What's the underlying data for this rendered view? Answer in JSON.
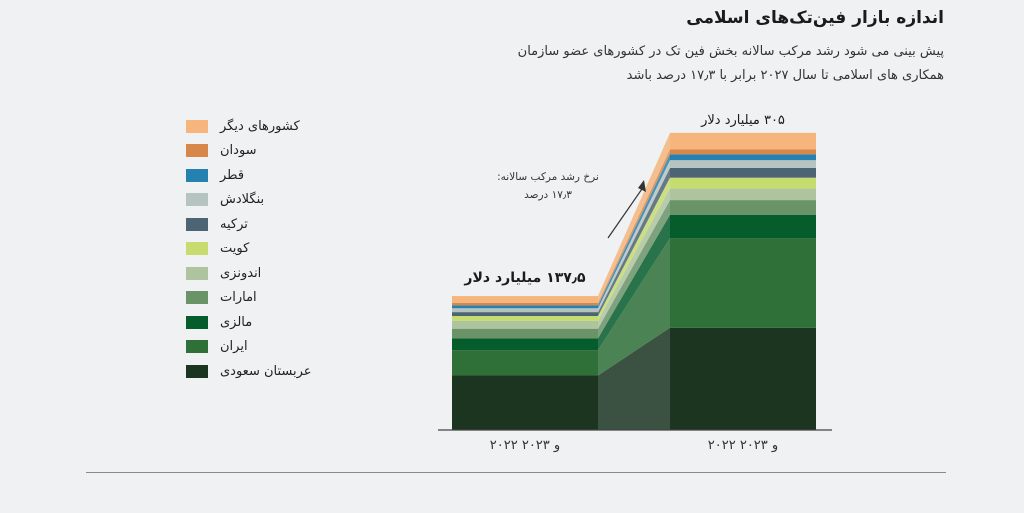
{
  "header": {
    "title": "اندازه بازار فین‌تک‌های اسلامی",
    "subtitle": "پیش بینی می شود رشد مرکب سالانه بخش فین تک در کشورهای عضو سازمان همکاری های اسلامی تا سال ۲۰۲۷ برابر با ۱۷٫۳ درصد باشد"
  },
  "chart_data": {
    "type": "bar",
    "stacked": true,
    "categories": [
      "۲۰۲۲ و ۲۰۲۳",
      "۲۰۲۲ و ۲۰۲۳"
    ],
    "totals_labels": [
      "۱۳۷٫۵ میلیارد دلار",
      "۳۰۵ میلیارد دلار"
    ],
    "annotation": "نرخ رشد مرکب سالانه: ۱۷٫۳ درصد",
    "ylim": [
      0,
      310
    ],
    "series": [
      {
        "name": "عربستان سعودی",
        "color": "#1b3521",
        "values": [
          56,
          105
        ]
      },
      {
        "name": "ایران",
        "color": "#2e7038",
        "values": [
          26,
          92
        ]
      },
      {
        "name": "مالزی",
        "color": "#055d2c",
        "values": [
          12,
          24
        ]
      },
      {
        "name": "امارات",
        "color": "#6a9468",
        "values": [
          10,
          15
        ]
      },
      {
        "name": "اندونزی",
        "color": "#aec49e",
        "values": [
          8,
          12
        ]
      },
      {
        "name": "کویت",
        "color": "#c6dc6e",
        "values": [
          5,
          11
        ]
      },
      {
        "name": "ترکیه",
        "color": "#4c6473",
        "values": [
          4,
          10
        ]
      },
      {
        "name": "بنگلادش",
        "color": "#b5c4c0",
        "values": [
          4,
          8
        ]
      },
      {
        "name": "قطر",
        "color": "#2581b0",
        "values": [
          3,
          6
        ]
      },
      {
        "name": "سودان",
        "color": "#d8874a",
        "values": [
          2.5,
          5
        ]
      },
      {
        "name": "کشورهای دیگر",
        "color": "#f6b57c",
        "values": [
          7,
          17
        ]
      }
    ],
    "legend_order": [
      "کشورهای دیگر",
      "سودان",
      "قطر",
      "بنگلادش",
      "ترکیه",
      "کویت",
      "اندونزی",
      "امارات",
      "مالزی",
      "ایران",
      "عربستان سعودی"
    ]
  }
}
